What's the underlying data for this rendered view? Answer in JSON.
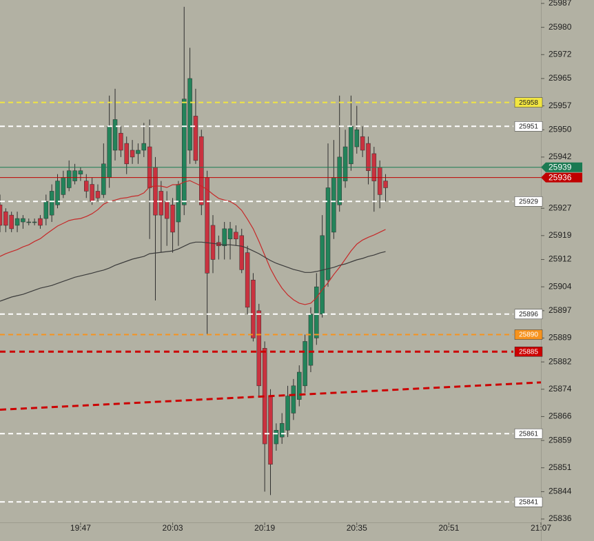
{
  "chart_data": {
    "type": "candlestick",
    "x": [
      "19:33",
      "19:34",
      "19:35",
      "19:36",
      "19:37",
      "19:38",
      "19:39",
      "19:40",
      "19:41",
      "19:42",
      "19:43",
      "19:44",
      "19:45",
      "19:46",
      "19:47",
      "19:48",
      "19:49",
      "19:50",
      "19:51",
      "19:52",
      "19:53",
      "19:54",
      "19:55",
      "19:56",
      "19:57",
      "19:58",
      "19:59",
      "20:00",
      "20:01",
      "20:02",
      "20:03",
      "20:04",
      "20:05",
      "20:06",
      "20:07",
      "20:08",
      "20:09",
      "20:10",
      "20:11",
      "20:12",
      "20:13",
      "20:14",
      "20:15",
      "20:16",
      "20:17",
      "20:18",
      "20:19",
      "20:20",
      "20:21",
      "20:22",
      "20:23",
      "20:24",
      "20:25",
      "20:26",
      "20:27",
      "20:28",
      "20:29",
      "20:30",
      "20:31",
      "20:32",
      "20:33",
      "20:34",
      "20:35",
      "20:36",
      "20:37",
      "20:38",
      "20:39",
      "20:40"
    ],
    "open": [
      25928,
      25926,
      25925,
      25922,
      25923,
      25923,
      25923,
      25924,
      25924,
      25925,
      25928,
      25931,
      25933,
      25935,
      25937,
      25935,
      25934,
      25932,
      25931,
      25936,
      25944,
      25949,
      25946,
      25944,
      25943,
      25944,
      25945,
      25939,
      25932,
      25929,
      25928,
      25923,
      25928,
      25944,
      25954,
      25948,
      25936,
      25922,
      25917,
      25916,
      25918,
      25920,
      25919,
      25914,
      25906,
      25897,
      25886,
      25872,
      25858,
      25860,
      25862,
      25867,
      25871,
      25875,
      25881,
      25889,
      25896,
      25906,
      25920,
      25928,
      25935,
      25940,
      25945,
      25948,
      25946,
      25943,
      25939,
      25935
    ],
    "high": [
      25931,
      25927,
      25926,
      25926,
      25925,
      25924,
      25924,
      25925,
      25931,
      25934,
      25937,
      25938,
      25941,
      25940,
      25939,
      25937,
      25936,
      25934,
      25946,
      25960,
      25962,
      25951,
      25948,
      25947,
      25946,
      25952,
      25953,
      25942,
      25935,
      25932,
      25930,
      25935,
      25986,
      25974,
      25962,
      25950,
      25938,
      25925,
      25919,
      25923,
      25923,
      25922,
      25921,
      25916,
      25908,
      25899,
      25888,
      25874,
      25864,
      25867,
      25875,
      25877,
      25881,
      25890,
      25898,
      25908,
      25925,
      25946,
      25947,
      25960,
      25950,
      25960,
      25957,
      25951,
      25948,
      25945,
      25941,
      25937
    ],
    "low": [
      25920,
      25920,
      25920,
      25920,
      25921,
      25922,
      25922,
      25921,
      25922,
      25923,
      25927,
      25930,
      25932,
      25934,
      25935,
      25930,
      25928,
      25929,
      25930,
      25933,
      25941,
      25942,
      25937,
      25940,
      25940,
      25942,
      25918,
      25900,
      25914,
      25916,
      25914,
      25916,
      25925,
      25940,
      25940,
      25925,
      25890,
      25908,
      25912,
      25912,
      25912,
      25916,
      25908,
      25896,
      25888,
      25872,
      25844,
      25843,
      25856,
      25858,
      25860,
      25865,
      25869,
      25873,
      25879,
      25887,
      25895,
      25904,
      25918,
      25926,
      25933,
      25938,
      25943,
      25942,
      25934,
      25926,
      25927,
      25929
    ],
    "close": [
      25922,
      25922,
      25921,
      25924,
      25924,
      25923,
      25923,
      25922,
      25929,
      25932,
      25935,
      25936,
      25938,
      25938,
      25938,
      25932,
      25929,
      25930,
      25940,
      25951,
      25953,
      25944,
      25940,
      25942,
      25944,
      25946,
      25933,
      25925,
      25925,
      25924,
      25920,
      25934,
      25959,
      25965,
      25941,
      25928,
      25908,
      25912,
      25916,
      25921,
      25921,
      25918,
      25909,
      25898,
      25889,
      25875,
      25858,
      25852,
      25862,
      25864,
      25872,
      25875,
      25879,
      25888,
      25896,
      25904,
      25919,
      25933,
      25936,
      25942,
      25945,
      25951,
      25950,
      25944,
      25938,
      25935,
      25931,
      25933
    ],
    "up_color": "#23835a",
    "down_color": "#c9323f",
    "wick_color": "#2e2e2e",
    "lines": [
      {
        "color": "#c62828",
        "values": [
          25912.9,
          25913.7,
          25914.3,
          25914.9,
          25915.7,
          25916.3,
          25917.3,
          25918.1,
          25919.4,
          25920.6,
          25921.8,
          25922.6,
          25923.4,
          25923.8,
          25924.0,
          25924.6,
          25925.4,
          25926.6,
          25928.2,
          25929.0,
          25929.4,
          25929.9,
          25930.1,
          25930.5,
          25930.7,
          25931.5,
          25933.3,
          25933.5,
          25933.5,
          25933.1,
          25933.9,
          25933.9,
          25934.7,
          25935.1,
          25934.3,
          25933.5,
          25932.5,
          25931.1,
          25929.9,
          25929.4,
          25929.0,
          25928.0,
          25926.4,
          25923.8,
          25921.0,
          25917.3,
          25913.3,
          25909.3,
          25906.2,
          25903.6,
          25901.6,
          25900.2,
          25899.2,
          25898.8,
          25899.2,
          25900.8,
          25903.2,
          25905.2,
          25907.6,
          25909.7,
          25912.1,
          25914.5,
          25916.5,
          25917.7,
          25918.5,
          25919.2,
          25920.0,
          25920.8
        ]
      },
      {
        "color": "#3a3a3a",
        "values": [
          25899.8,
          25900.4,
          25901.0,
          25901.4,
          25901.8,
          25902.4,
          25903.0,
          25903.6,
          25904.0,
          25904.4,
          25905.0,
          25905.6,
          25906.2,
          25906.8,
          25907.2,
          25907.6,
          25908.0,
          25908.5,
          25908.9,
          25909.5,
          25910.3,
          25910.9,
          25911.5,
          25912.1,
          25912.5,
          25912.9,
          25913.7,
          25913.9,
          25914.1,
          25914.3,
          25914.5,
          25915.1,
          25915.9,
          25916.7,
          25917.1,
          25917.1,
          25916.9,
          25916.7,
          25916.5,
          25916.3,
          25916.3,
          25916.1,
          25915.9,
          25915.3,
          25914.5,
          25913.7,
          25912.7,
          25911.7,
          25910.9,
          25910.3,
          25909.7,
          25909.1,
          25908.7,
          25908.2,
          25908.2,
          25908.5,
          25908.9,
          25909.3,
          25909.7,
          25910.3,
          25910.7,
          25911.3,
          25911.9,
          25912.3,
          25912.9,
          25913.3,
          25913.9,
          25914.3
        ]
      }
    ],
    "levels": [
      {
        "value": 25958,
        "color": "#f2e640",
        "label_color": "#f2e640",
        "text_color": "#222222",
        "width": 2
      },
      {
        "value": 25951,
        "color": "#ffffff",
        "label_color": "#ffffff",
        "text_color": "#222222",
        "width": 2
      },
      {
        "value": 25929,
        "color": "#ffffff",
        "label_color": "#ffffff",
        "text_color": "#222222",
        "width": 2
      },
      {
        "value": 25896,
        "color": "#ffffff",
        "label_color": "#ffffff",
        "text_color": "#222222",
        "width": 2
      },
      {
        "value": 25890,
        "color": "#f7931e",
        "label_color": "#f7931e",
        "text_color": "#ffffff",
        "width": 2
      },
      {
        "value": 25885,
        "color": "#cc0000",
        "label_color": "#cc0000",
        "text_color": "#ffffff",
        "width": 3
      },
      {
        "value": 25861,
        "color": "#ffffff",
        "label_color": "#ffffff",
        "text_color": "#222222",
        "width": 2
      },
      {
        "value": 25841,
        "color": "#ffffff",
        "label_color": "#ffffff",
        "text_color": "#222222",
        "width": 2
      }
    ],
    "price_labels": [
      {
        "value": 25939,
        "color": "#1a7a52"
      },
      {
        "value": 25936,
        "color": "#c00000"
      }
    ],
    "trendline": {
      "x": [
        "19:33",
        "21:07"
      ],
      "values": [
        25868,
        25876
      ],
      "color": "#cc0000"
    },
    "xlim": [
      "19:33",
      "21:07"
    ],
    "xticks": [
      "19:47",
      "20:03",
      "20:19",
      "20:35",
      "20:51",
      "21:07"
    ],
    "ylim": [
      25835,
      25988
    ],
    "yticks": [
      25987,
      25980,
      25972,
      25965,
      25957,
      25950,
      25942,
      25927,
      25919,
      25912,
      25904,
      25897,
      25889,
      25882,
      25874,
      25866,
      25859,
      25851,
      25844,
      25836
    ]
  }
}
